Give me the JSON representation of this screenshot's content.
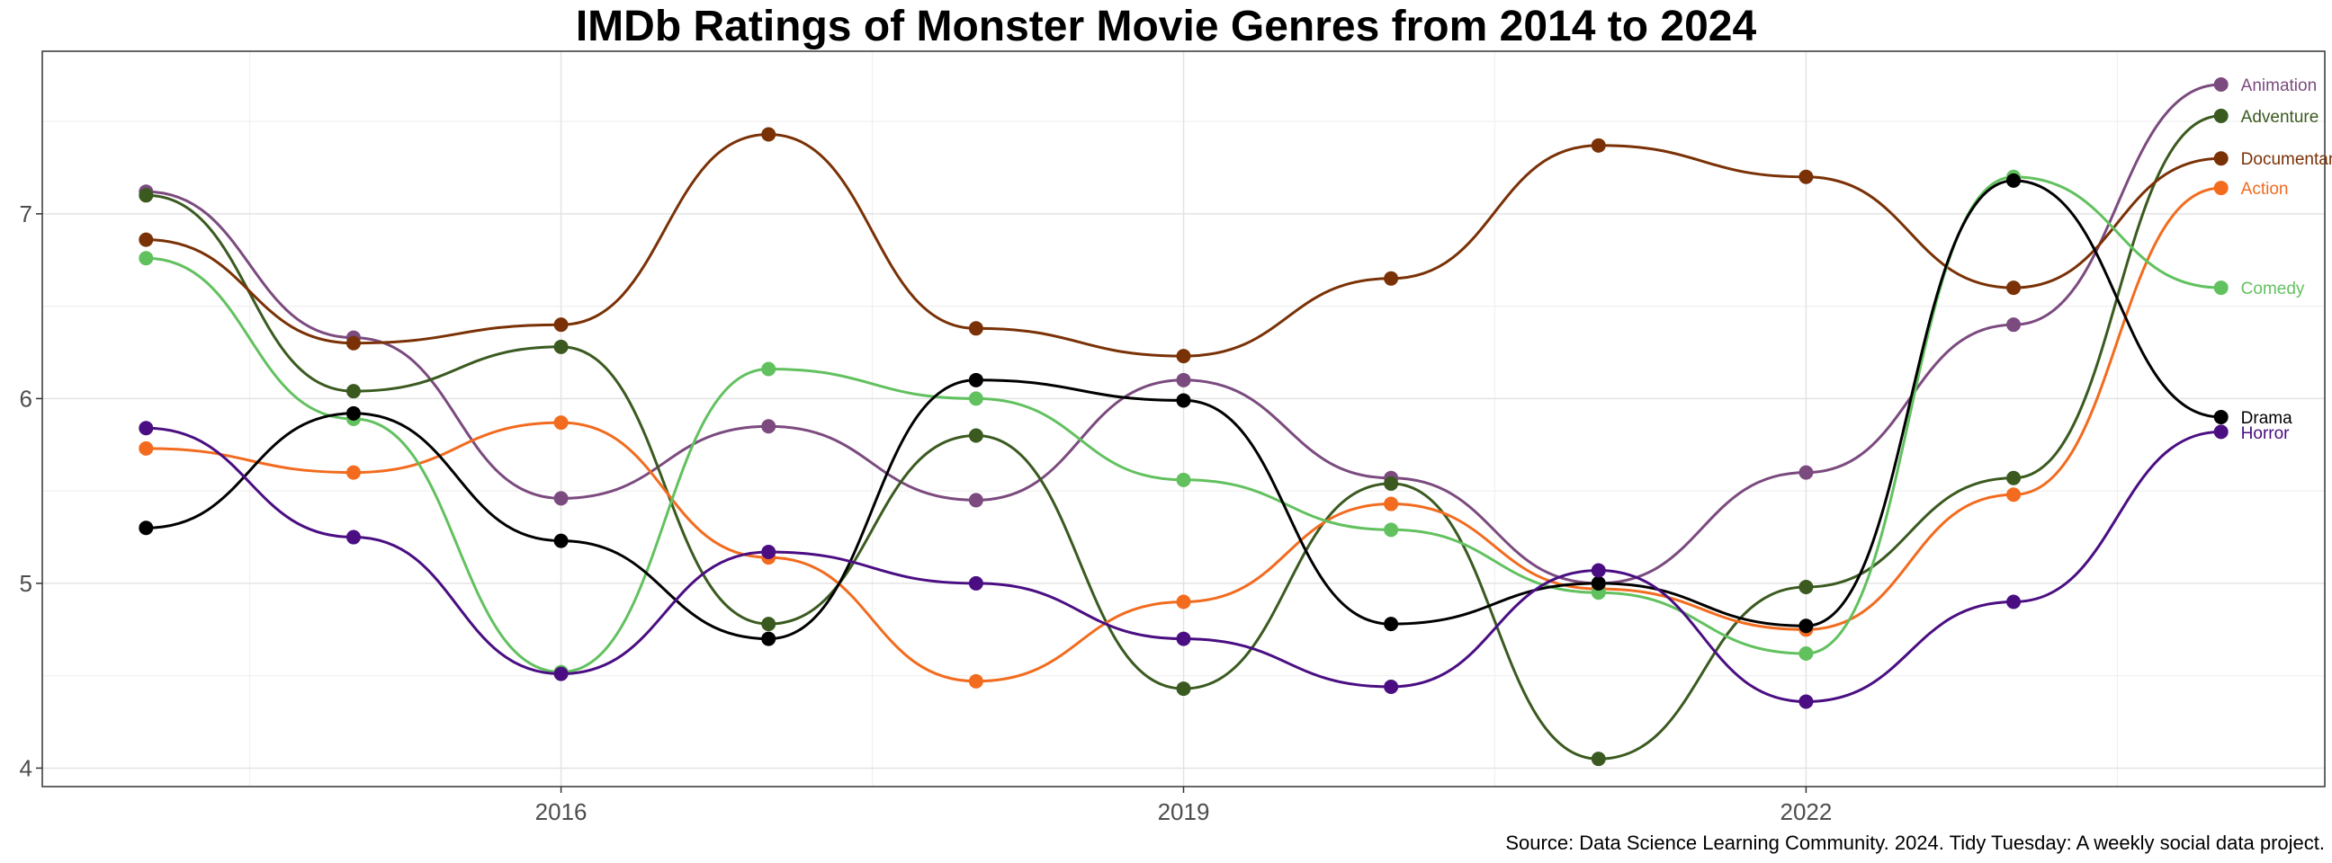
{
  "chart_data": {
    "type": "line",
    "title": "IMDb Ratings of Monster Movie Genres from 2014 to 2024",
    "caption": "Source: Data Science Learning Community. 2024. Tidy Tuesday: A weekly social data project.",
    "xlabel": "",
    "ylabel": "",
    "x": [
      2014,
      2015,
      2016,
      2017,
      2018,
      2019,
      2020,
      2021,
      2022,
      2023,
      2024
    ],
    "xlim": [
      2013.5,
      2024.5
    ],
    "xticks": [
      2016,
      2019,
      2022
    ],
    "ylim": [
      3.9,
      7.88
    ],
    "yticks": [
      4,
      5,
      6,
      7
    ],
    "grid": true,
    "legend": "direct labels at right end of each line",
    "series": [
      {
        "name": "Animation",
        "color": "#7b4a7e",
        "values": [
          7.12,
          6.33,
          5.46,
          5.85,
          5.45,
          6.1,
          5.57,
          5.0,
          5.6,
          6.4,
          7.7
        ]
      },
      {
        "name": "Adventure",
        "color": "#3a5a1f",
        "values": [
          7.1,
          6.04,
          6.28,
          4.78,
          5.8,
          4.43,
          5.54,
          4.05,
          4.98,
          5.57,
          7.53
        ]
      },
      {
        "name": "Documentary",
        "color": "#7a3106",
        "values": [
          6.86,
          6.3,
          6.4,
          7.43,
          6.38,
          6.23,
          6.65,
          7.37,
          7.2,
          6.6,
          7.3
        ]
      },
      {
        "name": "Action",
        "color": "#f26b1e",
        "values": [
          5.73,
          5.6,
          5.87,
          5.14,
          4.47,
          4.9,
          5.43,
          4.97,
          4.75,
          5.48,
          7.14
        ]
      },
      {
        "name": "Comedy",
        "color": "#62c15f",
        "values": [
          6.76,
          5.89,
          4.52,
          6.16,
          6.0,
          5.56,
          5.29,
          4.95,
          4.62,
          7.2,
          6.6
        ]
      },
      {
        "name": "Drama",
        "color": "#000000",
        "values": [
          5.3,
          5.92,
          5.23,
          4.7,
          6.1,
          5.99,
          4.78,
          5.0,
          4.77,
          7.18,
          5.9
        ]
      },
      {
        "name": "Horror",
        "color": "#4a0e82",
        "values": [
          5.84,
          5.25,
          4.51,
          5.17,
          5.0,
          4.7,
          4.44,
          5.07,
          4.36,
          4.9,
          5.82
        ]
      }
    ]
  }
}
